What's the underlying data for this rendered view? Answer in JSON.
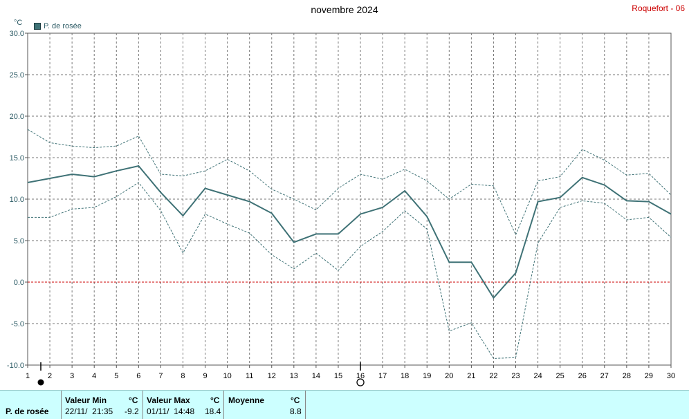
{
  "header": {
    "title": "novembre 2024",
    "station": "Roquefort - 06",
    "unit": "°C",
    "legend_label": "P. de rosée"
  },
  "chart_data": {
    "type": "line",
    "title": "novembre 2024",
    "ylabel": "°C",
    "ylim": [
      -10,
      30
    ],
    "xlim": [
      1,
      30
    ],
    "yticks": [
      "30.0",
      "25.0",
      "20.0",
      "15.0",
      "10.0",
      "5.0",
      "0.0",
      "-5.0",
      "-10.0"
    ],
    "ytick_values": [
      30,
      25,
      20,
      15,
      10,
      5,
      0,
      -5,
      -10
    ],
    "x": [
      1,
      2,
      3,
      4,
      5,
      6,
      7,
      8,
      9,
      10,
      11,
      12,
      13,
      14,
      15,
      16,
      17,
      18,
      19,
      20,
      21,
      22,
      23,
      24,
      25,
      26,
      27,
      28,
      29,
      30
    ],
    "series": [
      {
        "name": "P. de rosée",
        "color": "#3f7276",
        "values": [
          12.0,
          12.5,
          13.0,
          12.7,
          13.4,
          14.0,
          10.8,
          8.0,
          11.3,
          10.5,
          9.7,
          8.3,
          4.8,
          5.8,
          5.8,
          8.2,
          9.0,
          11.0,
          7.9,
          2.4,
          2.4,
          -1.9,
          1.1,
          9.7,
          10.2,
          12.6,
          11.7,
          9.8,
          9.7,
          8.2
        ]
      },
      {
        "role": "max",
        "color": "#3f7276",
        "values": [
          18.4,
          16.8,
          16.4,
          16.2,
          16.4,
          17.6,
          13.0,
          12.8,
          13.4,
          14.8,
          13.4,
          11.2,
          10.0,
          8.7,
          11.3,
          13.0,
          12.4,
          13.6,
          12.2,
          10.0,
          11.8,
          11.6,
          5.7,
          12.2,
          12.7,
          16.0,
          14.7,
          12.9,
          13.1,
          10.5
        ]
      },
      {
        "role": "min",
        "color": "#3f7276",
        "values": [
          7.8,
          7.8,
          8.8,
          9.0,
          10.3,
          12.0,
          8.6,
          3.5,
          8.2,
          7.0,
          5.9,
          3.3,
          1.6,
          3.5,
          1.4,
          4.3,
          6.1,
          8.6,
          6.4,
          -5.9,
          -4.9,
          -9.2,
          -9.1,
          4.7,
          9.0,
          9.8,
          9.5,
          7.5,
          7.8,
          5.4
        ]
      }
    ],
    "zero_line_color": "#cc0000",
    "markers": [
      {
        "x": 1,
        "symbol": "full-moon-dot"
      },
      {
        "x": 16,
        "symbol": "empty-moon-circle"
      }
    ],
    "grid": true
  },
  "footer": {
    "param_label": "P. de rosée",
    "min_header": "Valeur Min",
    "min_unit": "°C",
    "min_date": "22/11/  21:35",
    "min_value": "-9.2",
    "max_header": "Valeur Max",
    "max_unit": "°C",
    "max_date": "01/11/  14:48",
    "max_value": "18.4",
    "avg_header": "Moyenne",
    "avg_unit": "°C",
    "avg_value": "8.8"
  }
}
